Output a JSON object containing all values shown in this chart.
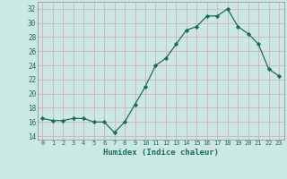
{
  "x": [
    0,
    1,
    2,
    3,
    4,
    5,
    6,
    7,
    8,
    9,
    10,
    11,
    12,
    13,
    14,
    15,
    16,
    17,
    18,
    19,
    20,
    21,
    22,
    23
  ],
  "y": [
    16.5,
    16.2,
    16.2,
    16.5,
    16.5,
    16.0,
    16.0,
    14.5,
    16.0,
    18.5,
    21.0,
    24.0,
    25.0,
    27.0,
    29.0,
    29.5,
    31.0,
    31.0,
    32.0,
    29.5,
    28.5,
    27.0,
    23.5,
    22.5
  ],
  "xlabel": "Humidex (Indice chaleur)",
  "bg_color": "#cce8e4",
  "grid_color": "#d4b8b8",
  "line_color": "#1a6b5a",
  "marker_color": "#1a6b5a",
  "yticks": [
    14,
    16,
    18,
    20,
    22,
    24,
    26,
    28,
    30,
    32
  ],
  "xticks": [
    0,
    1,
    2,
    3,
    4,
    5,
    6,
    7,
    8,
    9,
    10,
    11,
    12,
    13,
    14,
    15,
    16,
    17,
    18,
    19,
    20,
    21,
    22,
    23
  ],
  "ylim": [
    13.5,
    33.0
  ],
  "xlim": [
    -0.5,
    23.5
  ]
}
